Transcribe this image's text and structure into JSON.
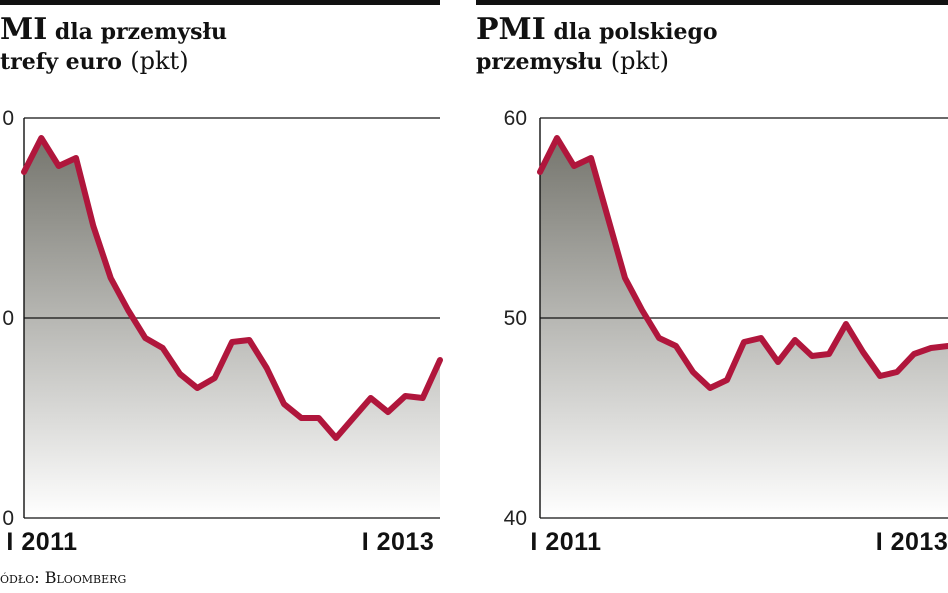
{
  "source": "ódło: Bloomberg",
  "colors": {
    "line": "#b0163c",
    "rule": "#111111",
    "shade_top": "#6e6e66",
    "shade_bottom": "#ffffff"
  },
  "chart_data": [
    {
      "type": "area",
      "title_lead": "MI",
      "title_rest_1": " dla przemysłu",
      "title_line2": "trefy euro",
      "title_unit": "(pkt)",
      "xlabel": "",
      "ylabel": "",
      "ylim": [
        40,
        60
      ],
      "yticks": [
        "0",
        "0",
        "0"
      ],
      "xticks": [
        {
          "label": "I 2011",
          "x": 0
        },
        {
          "label": "I 2013",
          "x": 24
        }
      ],
      "grid": "horizontal",
      "series": [
        {
          "values": [
            57.3,
            59.0,
            57.6,
            58.0,
            54.6,
            52.0,
            50.4,
            49.0,
            48.5,
            47.2,
            46.5,
            47.0,
            48.8,
            48.9,
            47.5,
            45.7,
            45.0,
            45.0,
            44.0,
            45.0,
            46.0,
            45.3,
            46.1,
            46.0,
            47.9
          ]
        }
      ]
    },
    {
      "type": "area",
      "title_lead": "PMI",
      "title_rest_1": " dla polskiego",
      "title_line2": "przemysłu",
      "title_unit": "(pkt)",
      "xlabel": "",
      "ylabel": "",
      "ylim": [
        40,
        60
      ],
      "yticks": [
        "60",
        "50",
        "40"
      ],
      "xticks": [
        {
          "label": "I 2011",
          "x": 0
        },
        {
          "label": "I 2013",
          "x": 24
        }
      ],
      "grid": "horizontal",
      "series": [
        {
          "values": [
            57.3,
            59.0,
            57.6,
            58.0,
            55.0,
            52.0,
            50.4,
            49.0,
            48.6,
            47.3,
            46.5,
            46.9,
            48.8,
            49.0,
            47.8,
            48.9,
            48.1,
            48.2,
            49.7,
            48.3,
            47.1,
            47.3,
            48.2,
            48.5,
            48.6
          ]
        }
      ]
    }
  ]
}
